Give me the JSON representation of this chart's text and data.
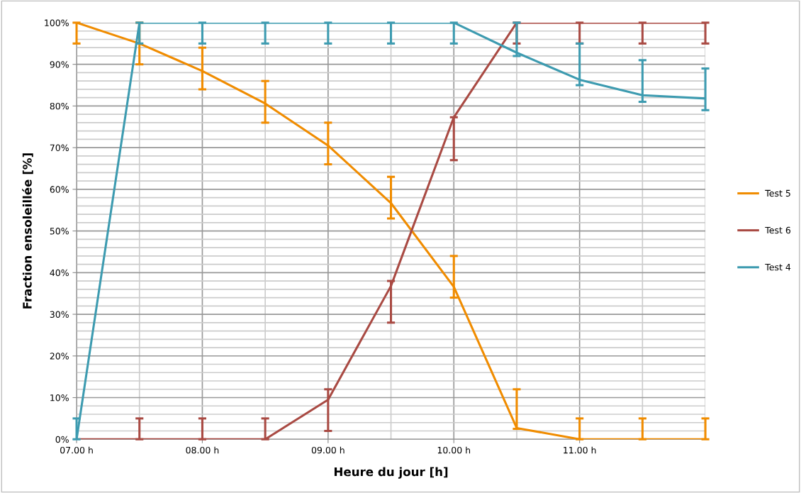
{
  "chart_data": {
    "type": "line",
    "xlabel": "Heure du jour [h]",
    "ylabel": "Fraction ensoleillée [%]",
    "x": [
      7,
      7.5,
      8,
      8.5,
      9,
      9.5,
      10,
      10.5,
      11,
      11.5,
      12
    ],
    "xlim": [
      7,
      12
    ],
    "xticks": [
      {
        "value": 7,
        "label": "07.00 h"
      },
      {
        "value": 8,
        "label": "08.00 h"
      },
      {
        "value": 9,
        "label": "09.00 h"
      },
      {
        "value": 10,
        "label": "10.00 h"
      },
      {
        "value": 11,
        "label": "11.00 h"
      }
    ],
    "ylim": [
      0,
      100
    ],
    "yticks": [
      {
        "value": 0,
        "label": "0%"
      },
      {
        "value": 10,
        "label": "10%"
      },
      {
        "value": 20,
        "label": "20%"
      },
      {
        "value": 30,
        "label": "30%"
      },
      {
        "value": 40,
        "label": "40%"
      },
      {
        "value": 50,
        "label": "50%"
      },
      {
        "value": 60,
        "label": "60%"
      },
      {
        "value": 70,
        "label": "70%"
      },
      {
        "value": 80,
        "label": "80%"
      },
      {
        "value": 90,
        "label": "90%"
      },
      {
        "value": 100,
        "label": "100%"
      }
    ],
    "grid": true,
    "legend": "right",
    "marker": "none",
    "line_style": "solid",
    "series": [
      {
        "name": "Test 5",
        "color": "#f08c00",
        "values": [
          100,
          95,
          88.4,
          80.6,
          70.5,
          56.7,
          36.6,
          2.7,
          0,
          0,
          0
        ],
        "errors": [
          [
            95,
            100
          ],
          [
            90,
            100
          ],
          [
            84,
            94
          ],
          [
            76,
            86
          ],
          [
            66,
            76
          ],
          [
            53,
            63
          ],
          [
            34,
            44
          ],
          [
            2.5,
            12
          ],
          [
            0,
            5
          ],
          [
            0,
            5
          ],
          [
            0,
            5
          ]
        ]
      },
      {
        "name": "Test 6",
        "color": "#a94a43",
        "values": [
          0,
          0,
          0,
          0,
          9.5,
          36.8,
          77.3,
          100,
          100,
          100,
          100
        ],
        "errors": [
          null,
          [
            0,
            5
          ],
          [
            0,
            5
          ],
          [
            0,
            5
          ],
          [
            2,
            12
          ],
          [
            28,
            38
          ],
          [
            67,
            77.3
          ],
          [
            95,
            100
          ],
          [
            95,
            100
          ],
          [
            95,
            100
          ],
          [
            95,
            100
          ]
        ]
      },
      {
        "name": "Test 4",
        "color": "#3d9bb0",
        "values": [
          0,
          100,
          100,
          100,
          100,
          100,
          100,
          92.8,
          86.3,
          82.6,
          81.8
        ],
        "errors": [
          [
            0,
            5
          ],
          [
            95,
            100
          ],
          [
            95,
            100
          ],
          [
            95,
            100
          ],
          [
            95,
            100
          ],
          [
            95,
            100
          ],
          [
            95,
            100
          ],
          [
            92,
            100
          ],
          [
            85,
            95
          ],
          [
            81,
            91
          ],
          [
            79,
            89
          ]
        ]
      }
    ]
  }
}
